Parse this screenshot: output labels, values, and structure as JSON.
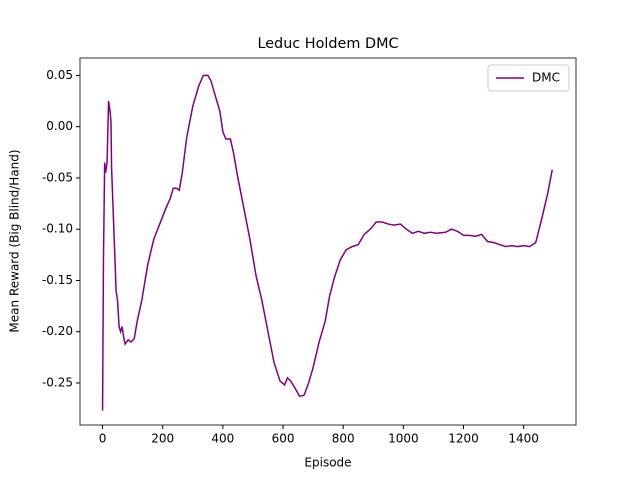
{
  "chart_data": {
    "type": "line",
    "title": "Leduc Holdem DMC",
    "xlabel": "Episode",
    "ylabel": "Mean Reward (Big Blind/Hand)",
    "x": [
      0,
      3,
      7,
      10,
      15,
      20,
      25,
      28,
      30,
      35,
      40,
      45,
      50,
      55,
      60,
      65,
      70,
      75,
      85,
      95,
      105,
      115,
      130,
      150,
      170,
      190,
      210,
      225,
      235,
      245,
      255,
      265,
      280,
      300,
      320,
      335,
      350,
      360,
      375,
      390,
      400,
      410,
      425,
      435,
      450,
      470,
      490,
      510,
      530,
      550,
      570,
      590,
      605,
      615,
      625,
      640,
      655,
      670,
      685,
      700,
      720,
      740,
      755,
      770,
      790,
      810,
      830,
      850,
      870,
      890,
      910,
      930,
      950,
      970,
      990,
      1010,
      1030,
      1050,
      1070,
      1090,
      1110,
      1140,
      1160,
      1180,
      1200,
      1220,
      1240,
      1260,
      1280,
      1300,
      1320,
      1340,
      1360,
      1380,
      1400,
      1420,
      1440,
      1460,
      1480,
      1495
    ],
    "series": [
      {
        "name": "DMC",
        "color": "#800080",
        "values": [
          -0.277,
          -0.13,
          -0.035,
          -0.045,
          -0.035,
          0.025,
          0.015,
          0.005,
          -0.04,
          -0.08,
          -0.12,
          -0.16,
          -0.17,
          -0.195,
          -0.2,
          -0.195,
          -0.205,
          -0.212,
          -0.208,
          -0.21,
          -0.207,
          -0.19,
          -0.17,
          -0.135,
          -0.11,
          -0.095,
          -0.08,
          -0.07,
          -0.06,
          -0.06,
          -0.062,
          -0.045,
          -0.01,
          0.02,
          0.04,
          0.05,
          0.05,
          0.045,
          0.03,
          0.015,
          -0.005,
          -0.012,
          -0.012,
          -0.025,
          -0.05,
          -0.08,
          -0.11,
          -0.145,
          -0.17,
          -0.2,
          -0.23,
          -0.248,
          -0.252,
          -0.245,
          -0.248,
          -0.255,
          -0.263,
          -0.262,
          -0.25,
          -0.235,
          -0.21,
          -0.19,
          -0.165,
          -0.148,
          -0.13,
          -0.12,
          -0.117,
          -0.115,
          -0.105,
          -0.1,
          -0.093,
          -0.093,
          -0.095,
          -0.096,
          -0.095,
          -0.1,
          -0.104,
          -0.102,
          -0.104,
          -0.103,
          -0.104,
          -0.103,
          -0.1,
          -0.102,
          -0.106,
          -0.106,
          -0.107,
          -0.105,
          -0.112,
          -0.113,
          -0.115,
          -0.117,
          -0.116,
          -0.117,
          -0.116,
          -0.117,
          -0.113,
          -0.09,
          -0.065,
          -0.042
        ]
      }
    ],
    "xlim": [
      -75,
      1574
    ],
    "ylim": [
      -0.291,
      0.067
    ],
    "xticks": [
      0,
      200,
      400,
      600,
      800,
      1000,
      1200,
      1400
    ],
    "yticks": [
      -0.25,
      {
        "value": -0.2,
        "label": "-0.20"
      },
      -0.15,
      {
        "value": -0.1,
        "label": "-0.10"
      },
      -0.05,
      {
        "value": 0,
        "label": "0.00"
      },
      0.05
    ],
    "legend": "upper right"
  }
}
